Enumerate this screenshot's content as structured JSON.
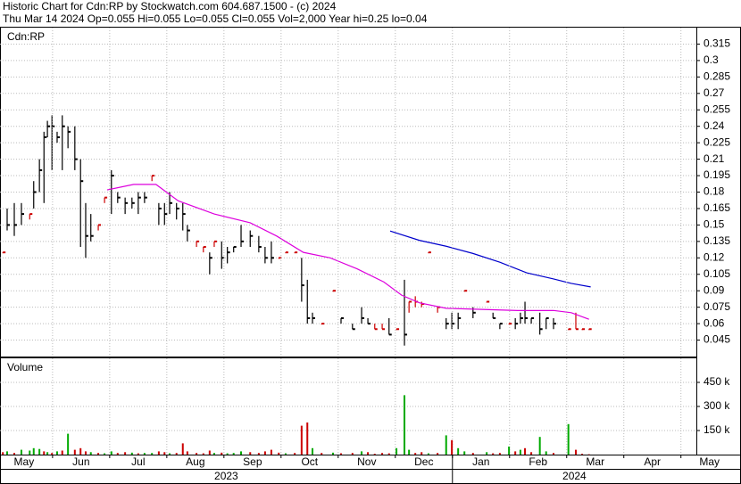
{
  "chart_data": [
    {
      "type": "hlc",
      "title": "Historic Chart for Cdn:RP by Stockwatch.com 604.687.1500 - (c) 2024",
      "subtitle": "Thu Mar 14 2024  Op=0.055  Hi=0.055  Lo=0.055  Cl=0.055  Vol=2,000  Year hi=0.25  lo=0.04",
      "label": "Cdn:RP",
      "xlim": [
        0.08,
        12.27
      ],
      "ylim": [
        0.03,
        0.33
      ],
      "yticks": [
        0.045,
        0.06,
        0.075,
        0.09,
        0.105,
        0.12,
        0.135,
        0.15,
        0.165,
        0.18,
        0.195,
        0.21,
        0.225,
        0.24,
        0.255,
        0.27,
        0.285,
        0.3,
        0.315
      ],
      "grid": true,
      "x": [
        0.13,
        0.205,
        0.33,
        0.455,
        0.6,
        0.67,
        0.77,
        0.85,
        0.91,
        0.99,
        1.08,
        1.17,
        1.27,
        1.39,
        1.49,
        1.58,
        1.67,
        1.8,
        1.91,
        2.03,
        2.14,
        2.27,
        2.39,
        2.5,
        2.61,
        2.74,
        2.86,
        2.96,
        3.05,
        3.17,
        3.28,
        3.36,
        3.52,
        3.64,
        3.75,
        3.83,
        3.96,
        4.06,
        4.17,
        4.3,
        4.46,
        4.61,
        4.72,
        4.83,
        4.96,
        5.08,
        5.24,
        5.36,
        5.46,
        5.55,
        5.71,
        5.91,
        6.05,
        6.25,
        6.41,
        6.52,
        6.64,
        6.77,
        6.89,
        7.02,
        7.16,
        7.24,
        7.35,
        7.46,
        7.58,
        7.74,
        7.89,
        7.99,
        8.1,
        8.21,
        8.36,
        8.6,
        8.71,
        8.83,
        8.99,
        9.1,
        9.19,
        9.27,
        9.38,
        9.53,
        9.64,
        9.77,
        10.03,
        10.16,
        10.27,
        10.39
      ],
      "high": [
        0.125,
        0.165,
        0.17,
        0.17,
        0.16,
        0.19,
        0.21,
        0.235,
        0.245,
        0.25,
        0.235,
        0.25,
        0.24,
        0.24,
        0.21,
        0.17,
        0.16,
        0.15,
        0.175,
        0.2,
        0.18,
        0.175,
        0.175,
        0.18,
        0.18,
        0.195,
        0.17,
        0.17,
        0.18,
        0.17,
        0.17,
        0.15,
        0.135,
        0.13,
        0.125,
        0.135,
        0.135,
        0.13,
        0.13,
        0.15,
        0.145,
        0.14,
        0.13,
        0.135,
        0.12,
        0.125,
        0.125,
        0.12,
        0.1,
        0.07,
        0.06,
        0.09,
        0.065,
        0.06,
        0.075,
        0.065,
        0.06,
        0.06,
        0.065,
        0.055,
        0.1,
        0.08,
        0.085,
        0.08,
        0.125,
        0.075,
        0.065,
        0.07,
        0.07,
        0.09,
        0.075,
        0.08,
        0.07,
        0.06,
        0.06,
        0.065,
        0.07,
        0.08,
        0.065,
        0.07,
        0.065,
        0.065,
        0.055,
        0.07,
        0.055,
        0.055
      ],
      "low": [
        0.125,
        0.145,
        0.14,
        0.15,
        0.155,
        0.165,
        0.18,
        0.17,
        0.23,
        0.2,
        0.225,
        0.2,
        0.22,
        0.2,
        0.13,
        0.12,
        0.135,
        0.145,
        0.17,
        0.16,
        0.17,
        0.16,
        0.165,
        0.16,
        0.17,
        0.19,
        0.15,
        0.15,
        0.16,
        0.155,
        0.145,
        0.135,
        0.13,
        0.125,
        0.105,
        0.13,
        0.11,
        0.115,
        0.125,
        0.13,
        0.13,
        0.125,
        0.115,
        0.115,
        0.12,
        0.125,
        0.125,
        0.08,
        0.06,
        0.06,
        0.06,
        0.09,
        0.06,
        0.055,
        0.06,
        0.06,
        0.055,
        0.055,
        0.05,
        0.055,
        0.04,
        0.07,
        0.075,
        0.075,
        0.125,
        0.07,
        0.055,
        0.055,
        0.055,
        0.09,
        0.065,
        0.08,
        0.065,
        0.055,
        0.06,
        0.055,
        0.06,
        0.06,
        0.06,
        0.05,
        0.055,
        0.055,
        0.055,
        0.055,
        0.055,
        0.055
      ],
      "close": [
        0.125,
        0.15,
        0.15,
        0.16,
        0.16,
        0.18,
        0.2,
        0.23,
        0.24,
        0.24,
        0.23,
        0.24,
        0.235,
        0.21,
        0.19,
        0.14,
        0.14,
        0.15,
        0.175,
        0.195,
        0.175,
        0.17,
        0.17,
        0.175,
        0.175,
        0.195,
        0.165,
        0.16,
        0.17,
        0.165,
        0.16,
        0.145,
        0.135,
        0.13,
        0.12,
        0.135,
        0.12,
        0.125,
        0.13,
        0.135,
        0.14,
        0.13,
        0.12,
        0.12,
        0.12,
        0.125,
        0.125,
        0.095,
        0.065,
        0.065,
        0.06,
        0.09,
        0.065,
        0.055,
        0.065,
        0.06,
        0.055,
        0.055,
        0.05,
        0.055,
        0.05,
        0.08,
        0.08,
        0.078,
        0.125,
        0.075,
        0.06,
        0.06,
        0.065,
        0.09,
        0.07,
        0.08,
        0.065,
        0.06,
        0.06,
        0.06,
        0.065,
        0.065,
        0.065,
        0.055,
        0.065,
        0.06,
        0.055,
        0.055,
        0.055,
        0.055
      ],
      "bar_colors": [
        "#cc0000",
        "#000000",
        "#000000",
        "#000000",
        "#cc0000",
        "#000000",
        "#000000",
        "#000000",
        "#000000",
        "#000000",
        "#000000",
        "#000000",
        "#000000",
        "#000000",
        "#000000",
        "#000000",
        "#000000",
        "#cc0000",
        "#cc0000",
        "#000000",
        "#000000",
        "#000000",
        "#000000",
        "#000000",
        "#000000",
        "#cc0000",
        "#000000",
        "#000000",
        "#000000",
        "#000000",
        "#000000",
        "#000000",
        "#cc0000",
        "#cc0000",
        "#000000",
        "#cc0000",
        "#000000",
        "#000000",
        "#000000",
        "#000000",
        "#000000",
        "#000000",
        "#000000",
        "#000000",
        "#cc0000",
        "#cc0000",
        "#cc0000",
        "#000000",
        "#000000",
        "#000000",
        "#cc0000",
        "#cc0000",
        "#000000",
        "#000000",
        "#000000",
        "#000000",
        "#cc0000",
        "#cc0000",
        "#000000",
        "#cc0000",
        "#000000",
        "#cc0000",
        "#cc0000",
        "#cc0000",
        "#cc0000",
        "#cc0000",
        "#000000",
        "#000000",
        "#000000",
        "#cc0000",
        "#000000",
        "#cc0000",
        "#000000",
        "#000000",
        "#cc0000",
        "#000000",
        "#000000",
        "#000000",
        "#000000",
        "#000000",
        "#000000",
        "#000000",
        "#cc0000",
        "#cc0000",
        "#cc0000",
        "#cc0000"
      ],
      "series": [
        {
          "color": "#dd00dd",
          "x": [
            1.955,
            2.42,
            2.81,
            3.2,
            3.83,
            4.46,
            4.92,
            5.39,
            5.86,
            6.33,
            6.8,
            7.11,
            7.42,
            7.89,
            8.52,
            9.14,
            9.77,
            10.08,
            10.39
          ],
          "values": [
            0.182,
            0.187,
            0.187,
            0.172,
            0.16,
            0.152,
            0.14,
            0.125,
            0.12,
            0.11,
            0.098,
            0.086,
            0.079,
            0.074,
            0.073,
            0.072,
            0.072,
            0.07,
            0.064
          ]
        },
        {
          "color": "#0000cc",
          "x": [
            6.91,
            7.42,
            7.89,
            8.36,
            8.83,
            9.3,
            9.77,
            10.08,
            10.42
          ],
          "values": [
            0.1445,
            0.136,
            0.1306,
            0.124,
            0.116,
            0.1064,
            0.1008,
            0.0967,
            0.0935
          ]
        }
      ]
    },
    {
      "type": "bar",
      "label": "Volume",
      "xlim": [
        0.08,
        12.27
      ],
      "ylim": [
        0,
        600000
      ],
      "yticks": [
        {
          "value": 150000,
          "label": "150 k"
        },
        {
          "value": 300000,
          "label": "300 k"
        },
        {
          "value": 450000,
          "label": "450 k"
        }
      ],
      "grid": true,
      "xticks": [
        {
          "value": 0,
          "label": "May"
        },
        {
          "value": 1,
          "label": "Jun"
        },
        {
          "value": 2,
          "label": "Jul"
        },
        {
          "value": 3,
          "label": "Aug"
        },
        {
          "value": 4,
          "label": "Sep"
        },
        {
          "value": 5,
          "label": "Oct"
        },
        {
          "value": 6,
          "label": "Nov"
        },
        {
          "value": 7,
          "label": "Dec"
        },
        {
          "value": 8,
          "label": "Jan"
        },
        {
          "value": 9,
          "label": "Feb"
        },
        {
          "value": 10,
          "label": "Mar"
        },
        {
          "value": 11,
          "label": "Apr"
        },
        {
          "value": 12,
          "label": "May"
        }
      ],
      "year_labels": [
        {
          "value": 0,
          "label": "2023"
        },
        {
          "value": 8,
          "label": "2024"
        }
      ],
      "x": [
        0.13,
        0.205,
        0.33,
        0.455,
        0.6,
        0.67,
        0.77,
        0.85,
        0.91,
        0.99,
        1.08,
        1.17,
        1.27,
        1.39,
        1.49,
        1.58,
        1.67,
        1.8,
        1.91,
        2.03,
        2.14,
        2.27,
        2.39,
        2.5,
        2.61,
        2.74,
        2.86,
        2.96,
        3.05,
        3.17,
        3.28,
        3.36,
        3.52,
        3.64,
        3.75,
        3.83,
        3.96,
        4.06,
        4.17,
        4.3,
        4.46,
        4.61,
        4.72,
        4.83,
        4.96,
        5.08,
        5.24,
        5.36,
        5.46,
        5.55,
        5.71,
        5.91,
        6.05,
        6.25,
        6.41,
        6.52,
        6.64,
        6.77,
        6.89,
        7.02,
        7.16,
        7.24,
        7.35,
        7.46,
        7.58,
        7.74,
        7.89,
        7.99,
        8.1,
        8.21,
        8.36,
        8.6,
        8.71,
        8.83,
        8.99,
        9.1,
        9.19,
        9.27,
        9.38,
        9.53,
        9.64,
        9.77,
        10.03,
        10.16,
        10.27,
        10.39
      ],
      "values": [
        15000,
        20000,
        10000,
        30000,
        25000,
        40000,
        35000,
        20000,
        15000,
        10000,
        20000,
        25000,
        130000,
        30000,
        40000,
        20000,
        15000,
        10000,
        8000,
        20000,
        10000,
        15000,
        12000,
        8000,
        10000,
        10000,
        20000,
        15000,
        8000,
        10000,
        70000,
        20000,
        10000,
        8000,
        25000,
        10000,
        12000,
        8000,
        10000,
        20000,
        15000,
        10000,
        20000,
        30000,
        12000,
        8000,
        10000,
        180000,
        200000,
        40000,
        10000,
        12000,
        8000,
        10000,
        20000,
        15000,
        5000,
        10000,
        8000,
        40000,
        370000,
        30000,
        10000,
        15000,
        8000,
        10000,
        120000,
        90000,
        40000,
        20000,
        10000,
        15000,
        8000,
        10000,
        50000,
        20000,
        30000,
        40000,
        15000,
        110000,
        20000,
        10000,
        190000,
        30000,
        5000,
        2000
      ],
      "colors": [
        "#cc0000",
        "#00aa00",
        "#cc0000",
        "#00aa00",
        "#00aa00",
        "#00aa00",
        "#00aa00",
        "#cc0000",
        "#00aa00",
        "#cc0000",
        "#00aa00",
        "#cc0000",
        "#00aa00",
        "#cc0000",
        "#cc0000",
        "#cc0000",
        "#00aa00",
        "#cc0000",
        "#00aa00",
        "#00aa00",
        "#cc0000",
        "#cc0000",
        "#00aa00",
        "#cc0000",
        "#00aa00",
        "#00aa00",
        "#cc0000",
        "#cc0000",
        "#00aa00",
        "#cc0000",
        "#cc0000",
        "#cc0000",
        "#cc0000",
        "#cc0000",
        "#cc0000",
        "#00aa00",
        "#cc0000",
        "#00aa00",
        "#00aa00",
        "#00aa00",
        "#cc0000",
        "#cc0000",
        "#cc0000",
        "#cc0000",
        "#cc0000",
        "#00aa00",
        "#cc0000",
        "#cc0000",
        "#cc0000",
        "#00aa00",
        "#cc0000",
        "#00aa00",
        "#cc0000",
        "#cc0000",
        "#00aa00",
        "#cc0000",
        "#cc0000",
        "#cc0000",
        "#cc0000",
        "#00aa00",
        "#00aa00",
        "#00aa00",
        "#cc0000",
        "#cc0000",
        "#00aa00",
        "#cc0000",
        "#00aa00",
        "#cc0000",
        "#00aa00",
        "#00aa00",
        "#cc0000",
        "#00aa00",
        "#cc0000",
        "#cc0000",
        "#00aa00",
        "#cc0000",
        "#00aa00",
        "#cc0000",
        "#cc0000",
        "#00aa00",
        "#00aa00",
        "#cc0000",
        "#00aa00",
        "#cc0000",
        "#cc0000",
        "#cc0000"
      ]
    }
  ]
}
